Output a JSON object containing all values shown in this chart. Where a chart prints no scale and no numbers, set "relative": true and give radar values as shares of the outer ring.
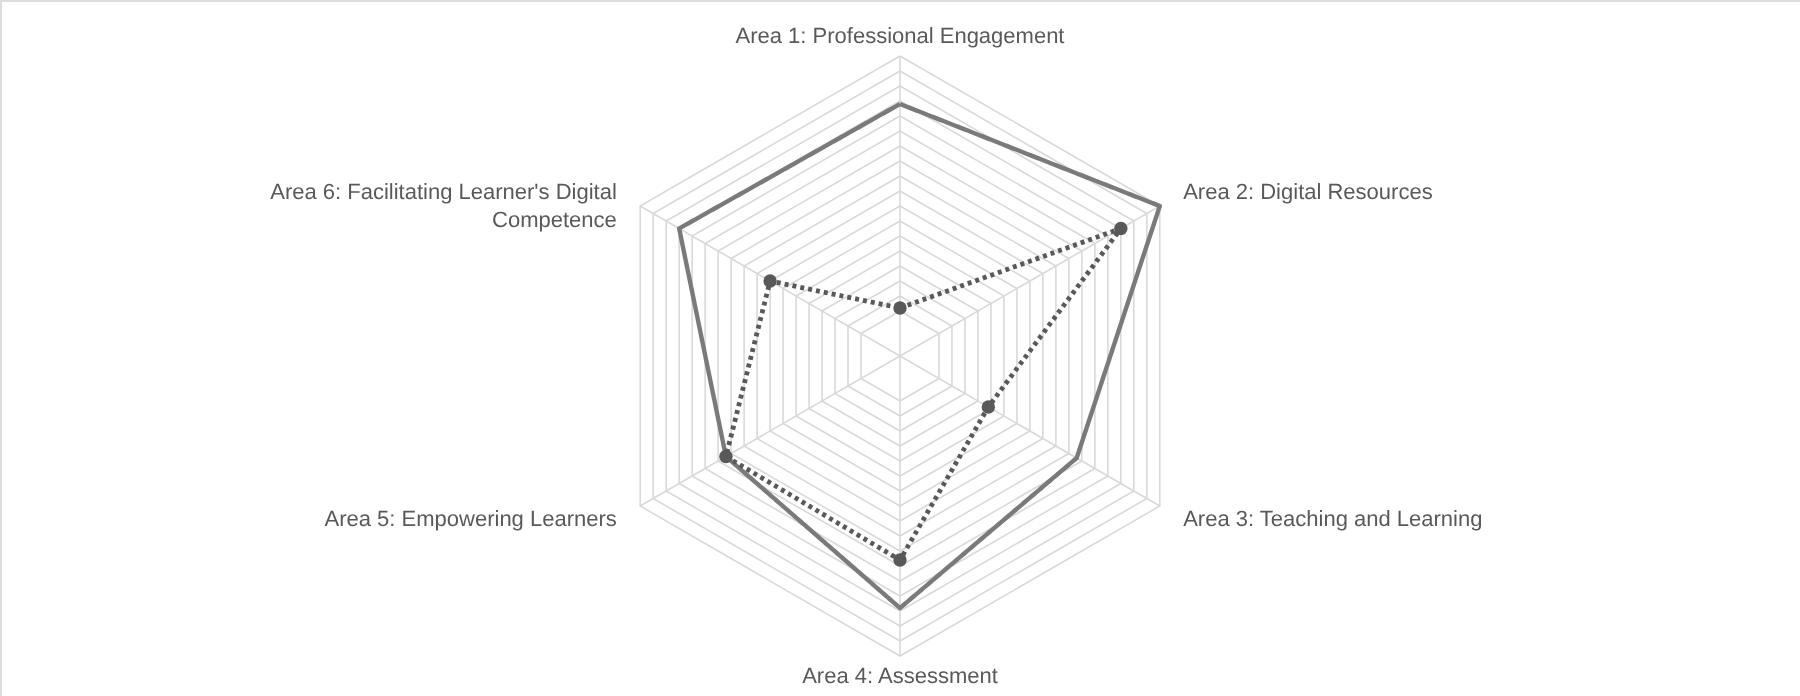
{
  "chart_data": {
    "type": "radar",
    "relative": true,
    "grid": true,
    "categories": [
      "Area 1: Professional Engagement",
      "Area 2: Digital Resources",
      "Area 3: Teaching and Learning",
      "Area 4: Assessment",
      "Area 5: Empowering Learners",
      "Area 6: Facilitating Learner's Digital Competence"
    ],
    "series": [
      {
        "color": "#7a7a7a",
        "line_style": "solid",
        "marker": "none",
        "values": [
          0.84,
          1.0,
          0.68,
          0.84,
          0.67,
          0.85
        ]
      },
      {
        "color": "#595959",
        "line_style": "dotted",
        "marker": "circle",
        "values": [
          0.16,
          0.85,
          0.34,
          0.68,
          0.67,
          0.5
        ]
      }
    ]
  }
}
